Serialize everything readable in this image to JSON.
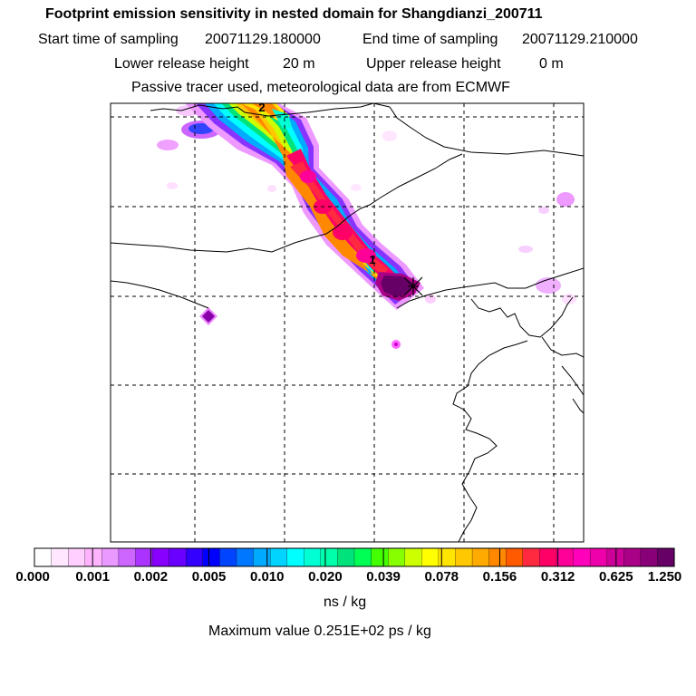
{
  "header": {
    "title": "Footprint emission sensitivity in nested domain for Shangdianzi_200711",
    "start_label": "Start time of sampling",
    "start_value": "20071129.180000",
    "end_label": "End time of sampling",
    "end_value": "20071129.210000",
    "lower_label": "Lower release height",
    "lower_value": "20 m",
    "upper_label": "Upper release height",
    "upper_value": "0 m",
    "tracer_note": "Passive tracer used, meteorological data are from ECMWF"
  },
  "chart_data": {
    "type": "heatmap",
    "title": "Footprint emission sensitivity in nested domain for Shangdianzi_200711",
    "colorbar_ticks": [
      "0.000",
      "0.001",
      "0.002",
      "0.005",
      "0.010",
      "0.020",
      "0.039",
      "0.078",
      "0.156",
      "0.312",
      "0.625",
      "1.250"
    ],
    "colorbar_unit": "ns / kg",
    "max_value_label": "Maximum value  0.251E+02 ps / kg",
    "colors": [
      "#ffffff",
      "#ffe8ff",
      "#ffd0ff",
      "#ffb3ff",
      "#e999ff",
      "#cc66ff",
      "#aa33ff",
      "#8800ff",
      "#6a00ff",
      "#3300ff",
      "#0000ff",
      "#0044ff",
      "#0077ff",
      "#00aaff",
      "#00d4ff",
      "#00ffff",
      "#00ffd4",
      "#00ffaa",
      "#00e27a",
      "#00ff55",
      "#44ff00",
      "#88ff00",
      "#ccff00",
      "#ffff00",
      "#ffe400",
      "#ffc800",
      "#ffaa00",
      "#ff8800",
      "#ff5a00",
      "#ff2a40",
      "#ff0066",
      "#ff0099",
      "#ff00bb",
      "#ee00aa",
      "#cc0099",
      "#aa0088",
      "#880077",
      "#660066"
    ],
    "markers": [
      "1",
      "2"
    ],
    "trajectory_points": [
      [
        0.0,
        0.0
      ],
      [
        0.3,
        -0.6
      ],
      [
        0.7,
        -1.1
      ],
      [
        1.2,
        -1.8
      ],
      [
        1.6,
        -2.3
      ],
      [
        2.0,
        -2.6
      ]
    ]
  }
}
